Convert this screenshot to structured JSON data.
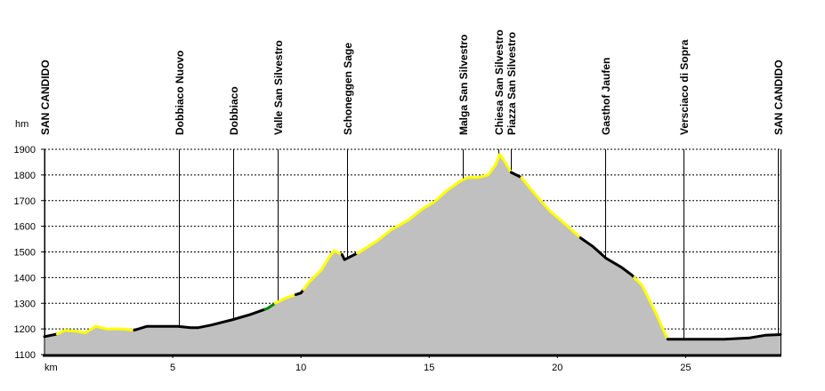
{
  "chart_data": {
    "type": "area",
    "ylabel": "hm",
    "xlabel": "km",
    "ylim": [
      1100,
      1900
    ],
    "xlim": [
      0,
      28.7
    ],
    "y_ticks": [
      1100,
      1200,
      1300,
      1400,
      1500,
      1600,
      1700,
      1800,
      1900
    ],
    "x_ticks": [
      5,
      10,
      15,
      20,
      25
    ],
    "grid": true,
    "fill_color": "#c0c0c0",
    "points": [
      [
        0,
        1170
      ],
      [
        0.5,
        1180
      ],
      [
        0.8,
        1195
      ],
      [
        1.3,
        1190
      ],
      [
        1.6,
        1185
      ],
      [
        2.0,
        1210
      ],
      [
        2.4,
        1200
      ],
      [
        3.0,
        1200
      ],
      [
        3.5,
        1195
      ],
      [
        4.0,
        1210
      ],
      [
        4.5,
        1210
      ],
      [
        5.2,
        1210
      ],
      [
        5.7,
        1205
      ],
      [
        6.0,
        1205
      ],
      [
        6.5,
        1215
      ],
      [
        7.3,
        1235
      ],
      [
        8.0,
        1255
      ],
      [
        8.7,
        1280
      ],
      [
        9.0,
        1300
      ],
      [
        9.4,
        1320
      ],
      [
        10.0,
        1340
      ],
      [
        10.3,
        1380
      ],
      [
        10.8,
        1430
      ],
      [
        11.1,
        1480
      ],
      [
        11.3,
        1505
      ],
      [
        11.6,
        1490
      ],
      [
        11.7,
        1470
      ],
      [
        12.3,
        1500
      ],
      [
        13.0,
        1545
      ],
      [
        13.5,
        1585
      ],
      [
        14.2,
        1625
      ],
      [
        14.7,
        1665
      ],
      [
        15.2,
        1695
      ],
      [
        15.7,
        1740
      ],
      [
        16.2,
        1775
      ],
      [
        16.5,
        1790
      ],
      [
        16.9,
        1790
      ],
      [
        17.3,
        1800
      ],
      [
        17.6,
        1840
      ],
      [
        17.75,
        1880
      ],
      [
        17.9,
        1860
      ],
      [
        18.2,
        1810
      ],
      [
        18.6,
        1790
      ],
      [
        19.0,
        1740
      ],
      [
        19.7,
        1660
      ],
      [
        20.4,
        1600
      ],
      [
        20.9,
        1555
      ],
      [
        21.4,
        1520
      ],
      [
        21.9,
        1475
      ],
      [
        22.5,
        1440
      ],
      [
        22.9,
        1410
      ],
      [
        23.3,
        1370
      ],
      [
        23.8,
        1270
      ],
      [
        24.3,
        1160
      ],
      [
        24.7,
        1160
      ],
      [
        25.3,
        1160
      ],
      [
        26.5,
        1160
      ],
      [
        27.5,
        1165
      ],
      [
        28.1,
        1175
      ],
      [
        28.7,
        1178
      ]
    ],
    "segments": [
      {
        "from": 0,
        "to": 0.5,
        "color": "#000000"
      },
      {
        "from": 0.5,
        "to": 3.5,
        "color": "#ffff00"
      },
      {
        "from": 3.5,
        "to": 8.6,
        "color": "#000000"
      },
      {
        "from": 8.6,
        "to": 9.0,
        "color": "#008000"
      },
      {
        "from": 9.0,
        "to": 9.8,
        "color": "#ffff00"
      },
      {
        "from": 9.8,
        "to": 10.1,
        "color": "#000000"
      },
      {
        "from": 10.1,
        "to": 11.6,
        "color": "#ffff00"
      },
      {
        "from": 11.6,
        "to": 12.2,
        "color": "#000000"
      },
      {
        "from": 12.2,
        "to": 18.2,
        "color": "#ffff00"
      },
      {
        "from": 18.2,
        "to": 18.6,
        "color": "#000000"
      },
      {
        "from": 18.6,
        "to": 20.9,
        "color": "#ffff00"
      },
      {
        "from": 20.9,
        "to": 23.0,
        "color": "#000000"
      },
      {
        "from": 23.0,
        "to": 24.3,
        "color": "#ffff00"
      },
      {
        "from": 24.3,
        "to": 28.7,
        "color": "#000000"
      }
    ],
    "waypoints": [
      {
        "name": "SAN CANDIDO",
        "km": 0
      },
      {
        "name": "Dobbiaco Nuovo",
        "km": 5.25
      },
      {
        "name": "Dobbiaco",
        "km": 7.35
      },
      {
        "name": "Valle San Silvestro",
        "km": 9.1
      },
      {
        "name": "Schoneggen Sage",
        "km": 11.8
      },
      {
        "name": "Malga San Silvestro",
        "km": 16.3
      },
      {
        "name": "Chiesa San Silvestro",
        "km": 17.7
      },
      {
        "name": "Piazza San Silvestro",
        "km": 18.2
      },
      {
        "name": "Gasthof Jaufen",
        "km": 21.85
      },
      {
        "name": "Versciaco di Sopra",
        "km": 24.9
      },
      {
        "name": "SAN CANDIDO",
        "km": 28.6
      }
    ]
  }
}
